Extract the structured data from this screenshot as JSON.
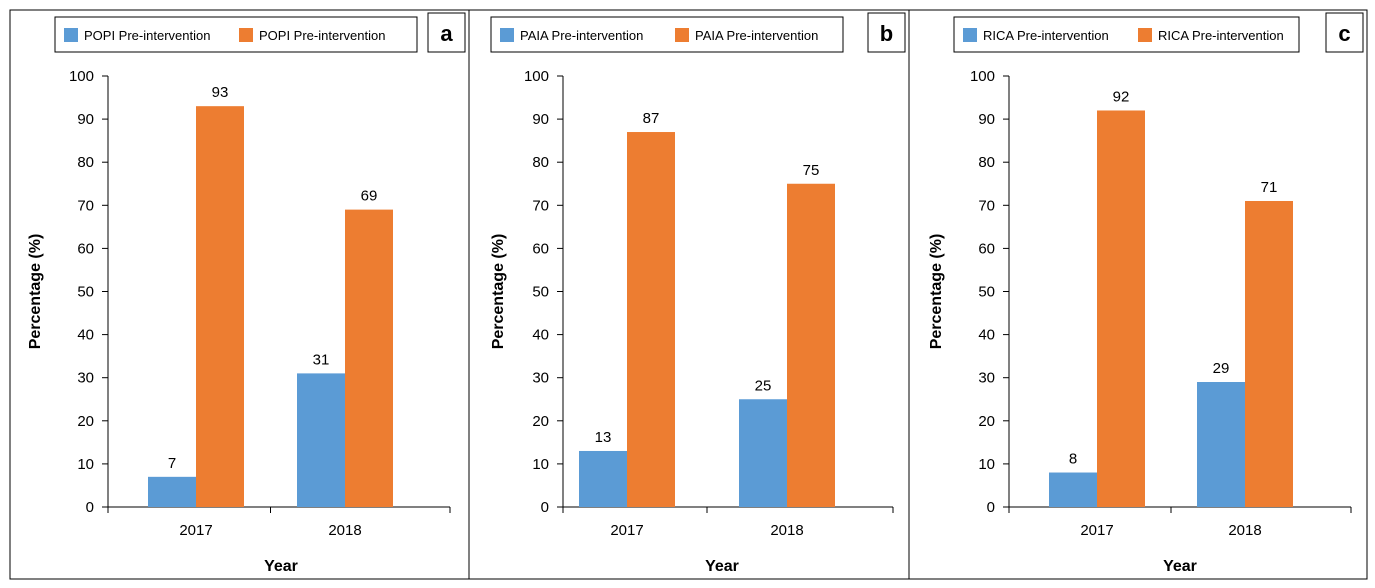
{
  "colors": {
    "series_0": "#5b9bd5",
    "series_1": "#ed7d31",
    "border": "#000000"
  },
  "chart_data": [
    {
      "type": "bar",
      "panel_label": "a",
      "categories": [
        "2017",
        "2018"
      ],
      "series": [
        {
          "name": "POPI Pre-intervention",
          "values": [
            7,
            31
          ]
        },
        {
          "name": "POPI Pre-intervention",
          "values": [
            93,
            69
          ]
        }
      ],
      "xlabel": "Year",
      "ylabel": "Percentage (%)",
      "ylim": [
        0,
        100
      ],
      "yticks": [
        "0",
        "10",
        "20",
        "30",
        "40",
        "50",
        "60",
        "70",
        "80",
        "90",
        "100"
      ],
      "data_labels": true,
      "legend": "top"
    },
    {
      "type": "bar",
      "panel_label": "b",
      "categories": [
        "2017",
        "2018"
      ],
      "series": [
        {
          "name": "PAIA Pre-intervention",
          "values": [
            13,
            25
          ]
        },
        {
          "name": "PAIA Pre-intervention",
          "values": [
            87,
            75
          ]
        }
      ],
      "xlabel": "Year",
      "ylabel": "Percentage (%)",
      "ylim": [
        0,
        100
      ],
      "yticks": [
        "0",
        "10",
        "20",
        "30",
        "40",
        "50",
        "60",
        "70",
        "80",
        "90",
        "100"
      ],
      "data_labels": true,
      "legend": "top"
    },
    {
      "type": "bar",
      "panel_label": "c",
      "categories": [
        "2017",
        "2018"
      ],
      "series": [
        {
          "name": "RICA Pre-intervention",
          "values": [
            8,
            29
          ]
        },
        {
          "name": "RICA Pre-intervention",
          "values": [
            92,
            71
          ]
        }
      ],
      "xlabel": "Year",
      "ylabel": "Percentage (%)",
      "ylim": [
        0,
        100
      ],
      "yticks": [
        "0",
        "10",
        "20",
        "30",
        "40",
        "50",
        "60",
        "70",
        "80",
        "90",
        "100"
      ],
      "data_labels": true,
      "legend": "top"
    }
  ]
}
